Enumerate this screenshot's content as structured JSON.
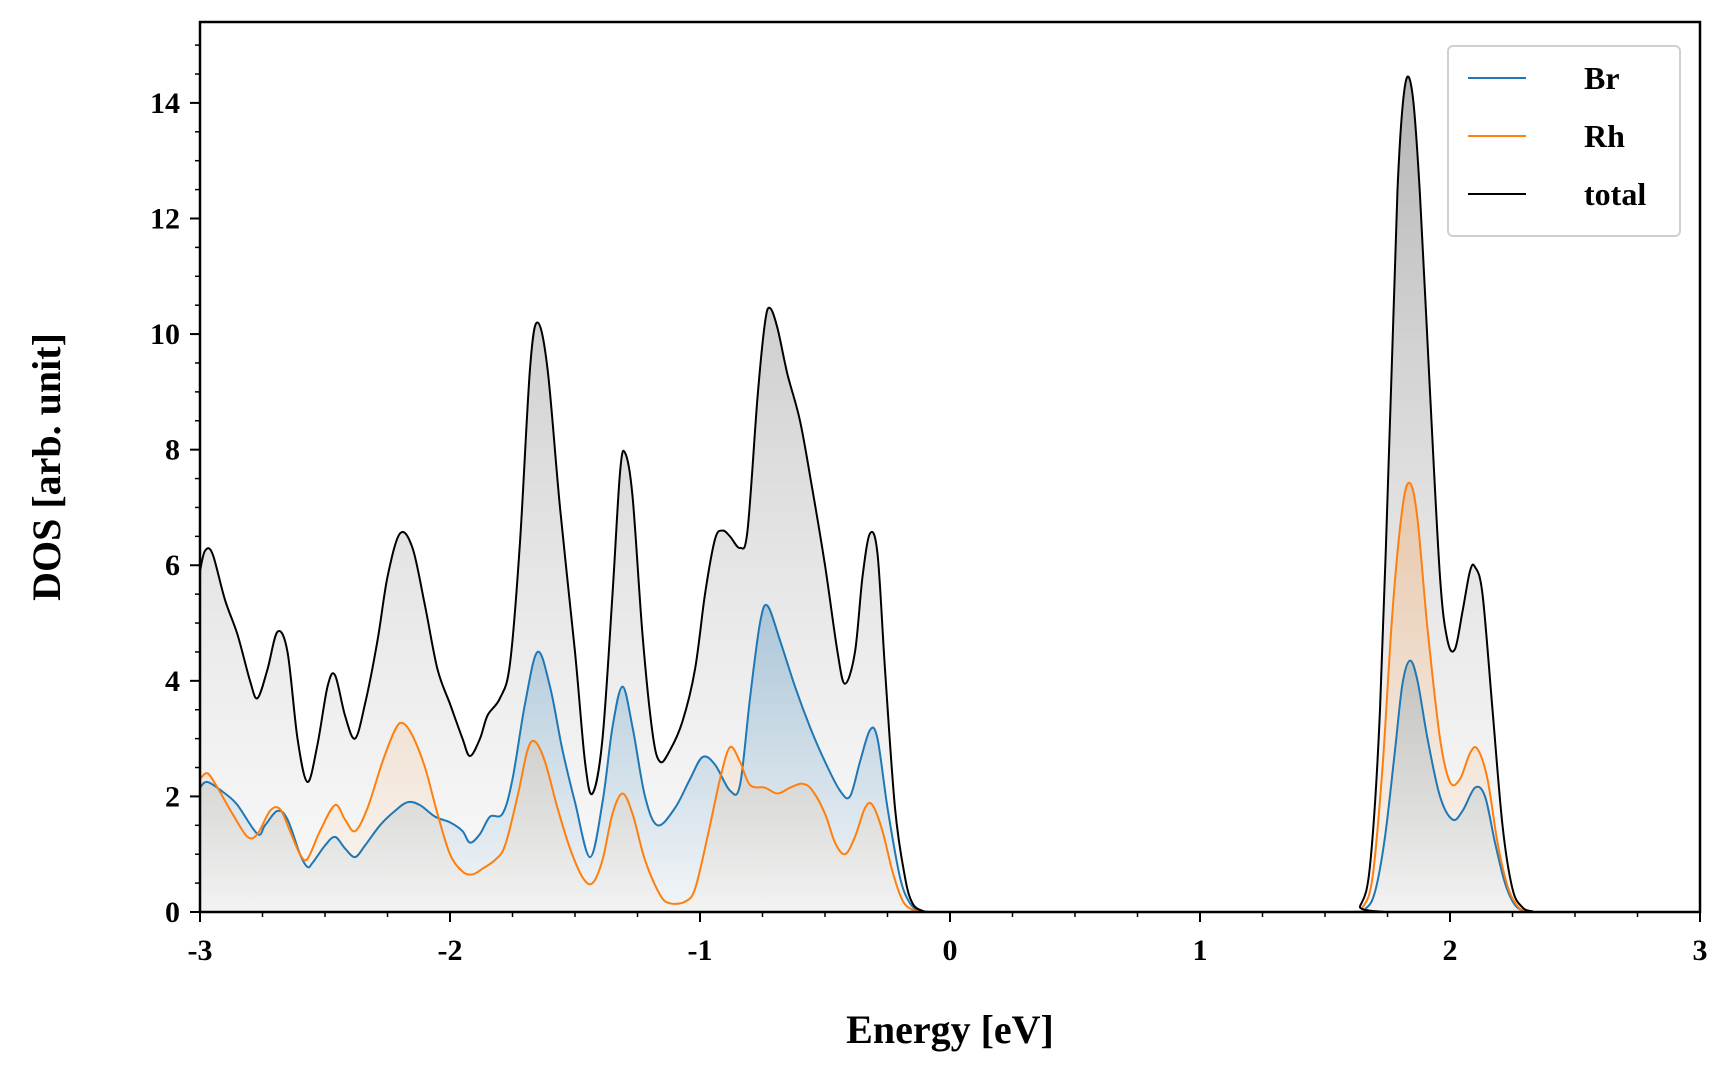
{
  "chart_data": {
    "type": "area",
    "xlabel": "Energy [eV]",
    "ylabel": "DOS [arb. unit]",
    "xlim": [
      -3,
      3
    ],
    "ylim": [
      0,
      15.4
    ],
    "xticks": [
      -3,
      -2,
      -1,
      0,
      1,
      2,
      3
    ],
    "xtick_labels": [
      "-3",
      "-2",
      "-1",
      "0",
      "1",
      "2",
      "3"
    ],
    "yticks": [
      0,
      2,
      4,
      6,
      8,
      10,
      12,
      14
    ],
    "ytick_labels": [
      "0",
      "2",
      "4",
      "6",
      "8",
      "10",
      "12",
      "14"
    ],
    "grid": false,
    "legend_position": "top-right",
    "colors": {
      "Br": "#1f77b4",
      "Rh": "#ff7f0e",
      "total": "#000000"
    },
    "series": [
      {
        "name": "Br",
        "points": [
          [
            -3,
            2.15
          ],
          [
            -2.97,
            2.25
          ],
          [
            -2.9,
            2.05
          ],
          [
            -2.85,
            1.85
          ],
          [
            -2.77,
            1.35
          ],
          [
            -2.74,
            1.5
          ],
          [
            -2.69,
            1.75
          ],
          [
            -2.65,
            1.6
          ],
          [
            -2.6,
            1.0
          ],
          [
            -2.57,
            0.78
          ],
          [
            -2.55,
            0.85
          ],
          [
            -2.5,
            1.15
          ],
          [
            -2.46,
            1.3
          ],
          [
            -2.42,
            1.1
          ],
          [
            -2.38,
            0.95
          ],
          [
            -2.34,
            1.15
          ],
          [
            -2.28,
            1.5
          ],
          [
            -2.22,
            1.75
          ],
          [
            -2.17,
            1.9
          ],
          [
            -2.12,
            1.85
          ],
          [
            -2.06,
            1.65
          ],
          [
            -2.0,
            1.55
          ],
          [
            -1.95,
            1.4
          ],
          [
            -1.92,
            1.2
          ],
          [
            -1.88,
            1.35
          ],
          [
            -1.84,
            1.65
          ],
          [
            -1.79,
            1.7
          ],
          [
            -1.75,
            2.3
          ],
          [
            -1.7,
            3.6
          ],
          [
            -1.65,
            4.5
          ],
          [
            -1.6,
            3.9
          ],
          [
            -1.55,
            2.8
          ],
          [
            -1.5,
            1.9
          ],
          [
            -1.44,
            0.95
          ],
          [
            -1.39,
            1.9
          ],
          [
            -1.35,
            3.2
          ],
          [
            -1.31,
            3.9
          ],
          [
            -1.27,
            3.2
          ],
          [
            -1.22,
            2.0
          ],
          [
            -1.17,
            1.5
          ],
          [
            -1.1,
            1.8
          ],
          [
            -1.04,
            2.3
          ],
          [
            -0.99,
            2.68
          ],
          [
            -0.94,
            2.55
          ],
          [
            -0.88,
            2.1
          ],
          [
            -0.84,
            2.2
          ],
          [
            -0.8,
            3.7
          ],
          [
            -0.76,
            5.0
          ],
          [
            -0.73,
            5.3
          ],
          [
            -0.68,
            4.7
          ],
          [
            -0.62,
            3.9
          ],
          [
            -0.56,
            3.2
          ],
          [
            -0.5,
            2.6
          ],
          [
            -0.44,
            2.1
          ],
          [
            -0.4,
            2.0
          ],
          [
            -0.36,
            2.6
          ],
          [
            -0.32,
            3.15
          ],
          [
            -0.29,
            3.0
          ],
          [
            -0.25,
            1.8
          ],
          [
            -0.2,
            0.6
          ],
          [
            -0.16,
            0.15
          ],
          [
            -0.12,
            0.02
          ],
          [
            -0.08,
            0
          ],
          [
            0,
            0
          ],
          [
            1.6,
            0
          ],
          [
            1.66,
            0.05
          ],
          [
            1.7,
            0.35
          ],
          [
            1.74,
            1.3
          ],
          [
            1.78,
            2.8
          ],
          [
            1.81,
            3.95
          ],
          [
            1.84,
            4.35
          ],
          [
            1.87,
            4.0
          ],
          [
            1.91,
            3.0
          ],
          [
            1.96,
            2.0
          ],
          [
            2.01,
            1.6
          ],
          [
            2.05,
            1.75
          ],
          [
            2.1,
            2.15
          ],
          [
            2.14,
            2.0
          ],
          [
            2.18,
            1.2
          ],
          [
            2.22,
            0.5
          ],
          [
            2.26,
            0.12
          ],
          [
            2.3,
            0.02
          ],
          [
            2.34,
            0
          ],
          [
            3,
            0
          ]
        ]
      },
      {
        "name": "Rh",
        "points": [
          [
            -3,
            2.3
          ],
          [
            -2.97,
            2.4
          ],
          [
            -2.93,
            2.15
          ],
          [
            -2.87,
            1.7
          ],
          [
            -2.81,
            1.3
          ],
          [
            -2.77,
            1.35
          ],
          [
            -2.72,
            1.75
          ],
          [
            -2.68,
            1.78
          ],
          [
            -2.64,
            1.4
          ],
          [
            -2.6,
            1.0
          ],
          [
            -2.57,
            0.92
          ],
          [
            -2.52,
            1.4
          ],
          [
            -2.46,
            1.85
          ],
          [
            -2.42,
            1.6
          ],
          [
            -2.38,
            1.4
          ],
          [
            -2.33,
            1.8
          ],
          [
            -2.27,
            2.6
          ],
          [
            -2.22,
            3.15
          ],
          [
            -2.19,
            3.27
          ],
          [
            -2.15,
            3.05
          ],
          [
            -2.1,
            2.5
          ],
          [
            -2.05,
            1.7
          ],
          [
            -2.0,
            1.0
          ],
          [
            -1.95,
            0.7
          ],
          [
            -1.91,
            0.65
          ],
          [
            -1.87,
            0.75
          ],
          [
            -1.82,
            0.9
          ],
          [
            -1.78,
            1.15
          ],
          [
            -1.73,
            2.0
          ],
          [
            -1.69,
            2.8
          ],
          [
            -1.66,
            2.95
          ],
          [
            -1.62,
            2.6
          ],
          [
            -1.57,
            1.8
          ],
          [
            -1.52,
            1.1
          ],
          [
            -1.47,
            0.6
          ],
          [
            -1.43,
            0.5
          ],
          [
            -1.39,
            0.9
          ],
          [
            -1.35,
            1.7
          ],
          [
            -1.31,
            2.05
          ],
          [
            -1.27,
            1.7
          ],
          [
            -1.22,
            0.9
          ],
          [
            -1.16,
            0.3
          ],
          [
            -1.12,
            0.15
          ],
          [
            -1.06,
            0.18
          ],
          [
            -1.02,
            0.4
          ],
          [
            -0.97,
            1.3
          ],
          [
            -0.92,
            2.3
          ],
          [
            -0.88,
            2.85
          ],
          [
            -0.84,
            2.6
          ],
          [
            -0.8,
            2.2
          ],
          [
            -0.74,
            2.15
          ],
          [
            -0.69,
            2.05
          ],
          [
            -0.64,
            2.15
          ],
          [
            -0.59,
            2.22
          ],
          [
            -0.55,
            2.1
          ],
          [
            -0.5,
            1.7
          ],
          [
            -0.46,
            1.2
          ],
          [
            -0.42,
            1.0
          ],
          [
            -0.38,
            1.3
          ],
          [
            -0.34,
            1.8
          ],
          [
            -0.31,
            1.85
          ],
          [
            -0.27,
            1.4
          ],
          [
            -0.23,
            0.7
          ],
          [
            -0.19,
            0.2
          ],
          [
            -0.15,
            0.04
          ],
          [
            -0.1,
            0
          ],
          [
            0,
            0
          ],
          [
            1.6,
            0
          ],
          [
            1.65,
            0.08
          ],
          [
            1.69,
            0.6
          ],
          [
            1.73,
            2.5
          ],
          [
            1.77,
            5.2
          ],
          [
            1.81,
            7.0
          ],
          [
            1.84,
            7.42
          ],
          [
            1.87,
            6.8
          ],
          [
            1.91,
            4.9
          ],
          [
            1.96,
            3.0
          ],
          [
            2.0,
            2.25
          ],
          [
            2.04,
            2.3
          ],
          [
            2.08,
            2.75
          ],
          [
            2.11,
            2.82
          ],
          [
            2.15,
            2.3
          ],
          [
            2.19,
            1.2
          ],
          [
            2.23,
            0.45
          ],
          [
            2.27,
            0.1
          ],
          [
            2.31,
            0.02
          ],
          [
            2.35,
            0
          ],
          [
            3,
            0
          ]
        ]
      },
      {
        "name": "total",
        "points": [
          [
            -3,
            5.9
          ],
          [
            -2.98,
            6.25
          ],
          [
            -2.95,
            6.2
          ],
          [
            -2.9,
            5.4
          ],
          [
            -2.85,
            4.8
          ],
          [
            -2.8,
            4.0
          ],
          [
            -2.77,
            3.7
          ],
          [
            -2.73,
            4.2
          ],
          [
            -2.69,
            4.85
          ],
          [
            -2.65,
            4.5
          ],
          [
            -2.61,
            3.0
          ],
          [
            -2.57,
            2.25
          ],
          [
            -2.53,
            2.9
          ],
          [
            -2.49,
            3.9
          ],
          [
            -2.46,
            4.1
          ],
          [
            -2.42,
            3.4
          ],
          [
            -2.38,
            3.0
          ],
          [
            -2.34,
            3.6
          ],
          [
            -2.29,
            4.7
          ],
          [
            -2.25,
            5.8
          ],
          [
            -2.2,
            6.55
          ],
          [
            -2.15,
            6.3
          ],
          [
            -2.1,
            5.3
          ],
          [
            -2.05,
            4.2
          ],
          [
            -2.0,
            3.6
          ],
          [
            -1.95,
            3.0
          ],
          [
            -1.92,
            2.7
          ],
          [
            -1.88,
            3.0
          ],
          [
            -1.85,
            3.4
          ],
          [
            -1.8,
            3.7
          ],
          [
            -1.76,
            4.3
          ],
          [
            -1.72,
            6.4
          ],
          [
            -1.68,
            9.4
          ],
          [
            -1.65,
            10.2
          ],
          [
            -1.61,
            9.4
          ],
          [
            -1.56,
            7.0
          ],
          [
            -1.5,
            4.5
          ],
          [
            -1.46,
            2.6
          ],
          [
            -1.43,
            2.05
          ],
          [
            -1.39,
            3.0
          ],
          [
            -1.35,
            5.5
          ],
          [
            -1.32,
            7.6
          ],
          [
            -1.3,
            7.95
          ],
          [
            -1.27,
            7.2
          ],
          [
            -1.23,
            4.8
          ],
          [
            -1.19,
            3.1
          ],
          [
            -1.16,
            2.6
          ],
          [
            -1.12,
            2.8
          ],
          [
            -1.07,
            3.3
          ],
          [
            -1.02,
            4.2
          ],
          [
            -0.98,
            5.5
          ],
          [
            -0.94,
            6.45
          ],
          [
            -0.91,
            6.6
          ],
          [
            -0.88,
            6.5
          ],
          [
            -0.84,
            6.3
          ],
          [
            -0.81,
            6.6
          ],
          [
            -0.77,
            8.9
          ],
          [
            -0.74,
            10.2
          ],
          [
            -0.72,
            10.45
          ],
          [
            -0.69,
            10.1
          ],
          [
            -0.65,
            9.3
          ],
          [
            -0.6,
            8.5
          ],
          [
            -0.55,
            7.3
          ],
          [
            -0.5,
            6.0
          ],
          [
            -0.45,
            4.5
          ],
          [
            -0.42,
            3.95
          ],
          [
            -0.38,
            4.5
          ],
          [
            -0.35,
            5.8
          ],
          [
            -0.32,
            6.55
          ],
          [
            -0.29,
            6.2
          ],
          [
            -0.26,
            4.2
          ],
          [
            -0.22,
            1.8
          ],
          [
            -0.18,
            0.6
          ],
          [
            -0.15,
            0.15
          ],
          [
            -0.11,
            0.02
          ],
          [
            -0.07,
            0
          ],
          [
            0,
            0
          ],
          [
            1.6,
            0
          ],
          [
            1.64,
            0.1
          ],
          [
            1.68,
            0.8
          ],
          [
            1.72,
            3.5
          ],
          [
            1.76,
            8.5
          ],
          [
            1.79,
            12.5
          ],
          [
            1.82,
            14.3
          ],
          [
            1.85,
            14.15
          ],
          [
            1.88,
            12.4
          ],
          [
            1.92,
            9.0
          ],
          [
            1.96,
            5.8
          ],
          [
            1.99,
            4.7
          ],
          [
            2.02,
            4.55
          ],
          [
            2.05,
            5.2
          ],
          [
            2.08,
            5.9
          ],
          [
            2.1,
            5.97
          ],
          [
            2.13,
            5.5
          ],
          [
            2.17,
            3.5
          ],
          [
            2.21,
            1.5
          ],
          [
            2.25,
            0.4
          ],
          [
            2.29,
            0.08
          ],
          [
            2.33,
            0.01
          ],
          [
            2.37,
            0
          ],
          [
            3,
            0
          ]
        ]
      }
    ]
  }
}
